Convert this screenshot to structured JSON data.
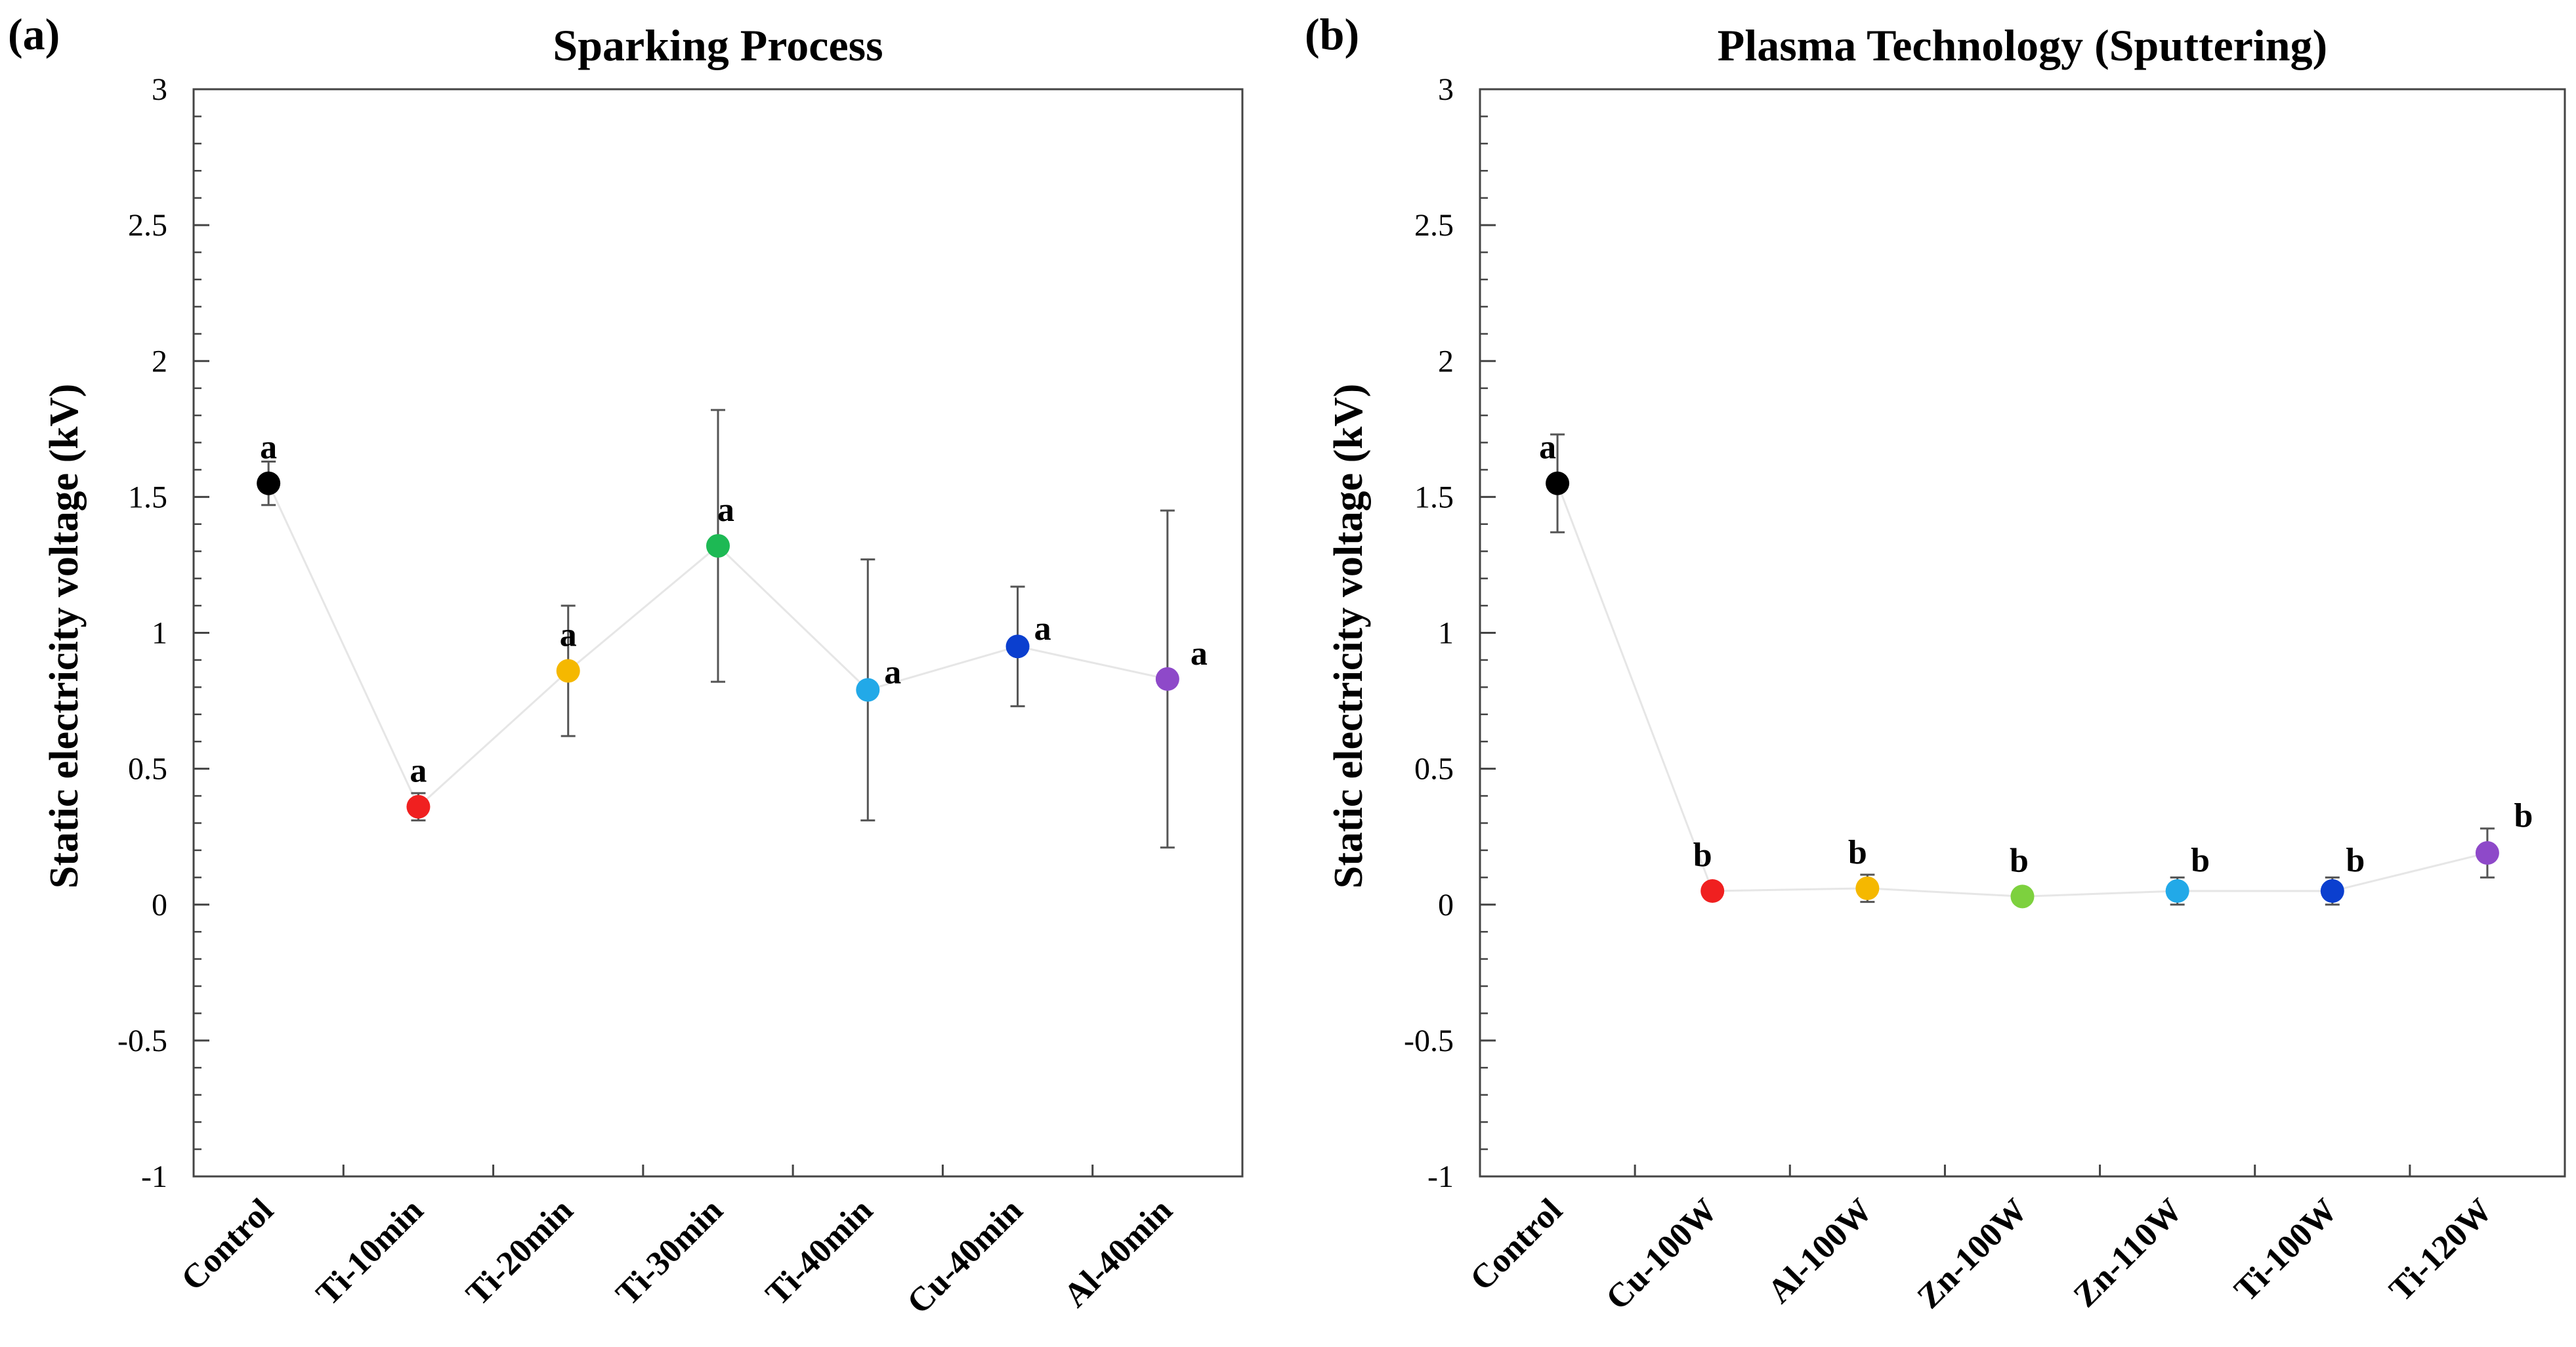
{
  "colors": {
    "black": "#000000",
    "red": "#f02020",
    "yellow": "#f5b800",
    "green": "#1db954",
    "light_blue": "#22a9e8",
    "blue": "#0b3fcf",
    "purple": "#8e49c9",
    "light_green": "#7dd13e",
    "connector": "#e6e6e6",
    "error_bar": "#555555"
  },
  "chart_data": [
    {
      "type": "scatter",
      "panel_label": "(a)",
      "title": "Sparking Process",
      "ylabel": "Static electricity voltage (kV)",
      "xlabel": "",
      "ylim": [
        -1,
        3
      ],
      "yticks": [
        "3",
        "2.5",
        "2",
        "1.5",
        "1",
        "0.5",
        "0",
        "-0.5",
        "-1"
      ],
      "ytick_values": [
        3,
        2.5,
        2,
        1.5,
        1,
        0.5,
        0,
        -0.5,
        -1
      ],
      "categories": [
        "Control",
        "Ti-10min",
        "Ti-20min",
        "Ti-30min",
        "Ti-40min",
        "Cu-40min",
        "Al-40min"
      ],
      "values": [
        1.55,
        0.36,
        0.86,
        1.32,
        0.79,
        0.95,
        0.83
      ],
      "error_low": [
        1.47,
        0.31,
        0.62,
        0.82,
        0.31,
        0.73,
        0.21
      ],
      "error_high": [
        1.63,
        0.41,
        1.1,
        1.82,
        1.27,
        1.17,
        1.45
      ],
      "significance": [
        "a",
        "a",
        "a",
        "a",
        "a",
        "a",
        "a"
      ],
      "point_colors": [
        "black",
        "red",
        "yellow",
        "green",
        "light_blue",
        "blue",
        "purple"
      ],
      "grid": false
    },
    {
      "type": "scatter",
      "panel_label": "(b)",
      "title": "Plasma Technology (Sputtering)",
      "ylabel": "Static electricity voltage (kV)",
      "xlabel": "",
      "ylim": [
        -1,
        3
      ],
      "yticks": [
        "3",
        "2.5",
        "2",
        "1.5",
        "1",
        "0.5",
        "0",
        "-0.5",
        "-1"
      ],
      "ytick_values": [
        3,
        2.5,
        2,
        1.5,
        1,
        0.5,
        0,
        -0.5,
        -1
      ],
      "categories": [
        "Control",
        "Cu-100W",
        "Al-100W",
        "Zn-100W",
        "Zn-110W",
        "Ti-100W",
        "Ti-120W"
      ],
      "values": [
        1.55,
        0.05,
        0.06,
        0.03,
        0.05,
        0.05,
        0.19
      ],
      "error_low": [
        1.37,
        0.05,
        0.01,
        0.03,
        0.0,
        0.0,
        0.1
      ],
      "error_high": [
        1.73,
        0.05,
        0.11,
        0.03,
        0.1,
        0.1,
        0.28
      ],
      "significance": [
        "a",
        "b",
        "b",
        "b",
        "b",
        "b",
        "b"
      ],
      "point_colors": [
        "black",
        "red",
        "yellow",
        "light_green",
        "light_blue",
        "blue",
        "purple"
      ],
      "grid": false
    }
  ]
}
